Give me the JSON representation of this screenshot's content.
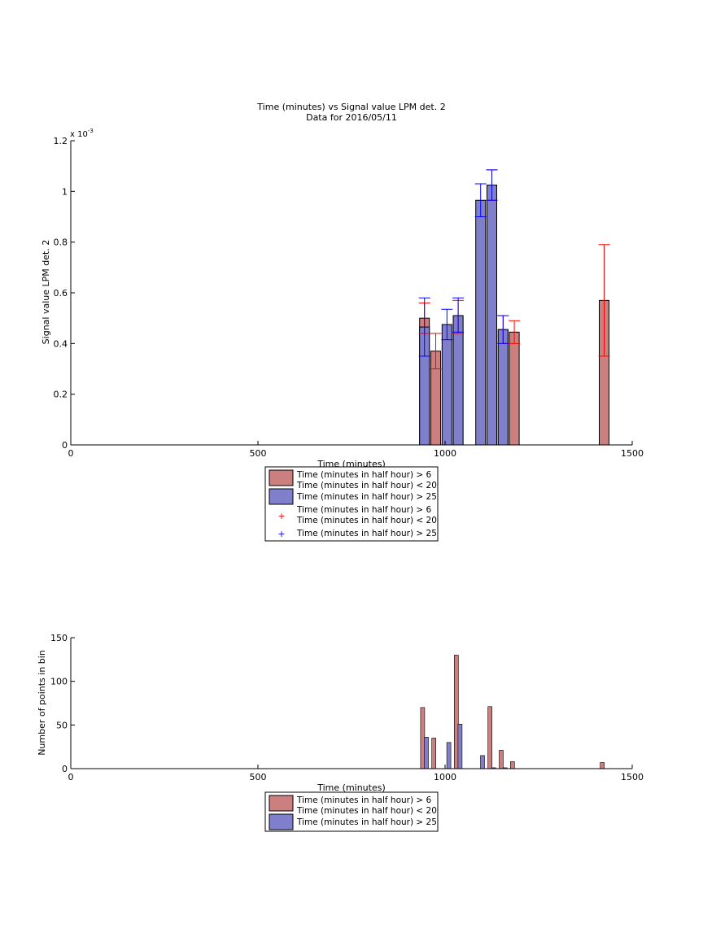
{
  "figure": {
    "title_line1": "Time (minutes) vs Signal value LPM det. 2",
    "title_line2": "Data for 2016/05/11"
  },
  "colors": {
    "red_fill": "#cc7f7f",
    "blue_fill": "#7f7fcc",
    "red_err": "#ff0000",
    "blue_err": "#0000ff",
    "axis": "#000000"
  },
  "legend_top": {
    "entries": [
      {
        "line1": "Time (minutes in half hour) > 6",
        "line2": "Time (minutes in half hour) < 20",
        "marker": "red-patch"
      },
      {
        "line1": "Time (minutes in half hour) > 25",
        "line2": "",
        "marker": "blue-patch"
      },
      {
        "line1": "Time (minutes in half hour) > 6",
        "line2": "Time (minutes in half hour) < 20",
        "marker": "red-plus"
      },
      {
        "line1": "Time (minutes in half hour) > 25",
        "line2": "",
        "marker": "blue-plus"
      }
    ]
  },
  "legend_bottom": {
    "entries": [
      {
        "line1": "Time (minutes in half hour) > 6",
        "line2": "Time (minutes in half hour) < 20",
        "marker": "red-patch"
      },
      {
        "line1": "Time (minutes in half hour) > 25",
        "line2": "",
        "marker": "blue-patch"
      }
    ]
  },
  "chart_data": [
    {
      "type": "bar",
      "title": "Time (minutes) vs Signal value LPM det. 2",
      "subtitle": "Data for 2016/05/11",
      "xlabel": "Time (minutes)",
      "ylabel": "Signal value LPM det. 2",
      "exponent_label": "x 10",
      "exponent_power": "-3",
      "xlim": [
        0,
        1500
      ],
      "ylim": [
        0,
        1.2
      ],
      "xticks": [
        0,
        500,
        1000,
        1500
      ],
      "xtick_labels": [
        "0",
        "500",
        "1000",
        "1500"
      ],
      "yticks": [
        0,
        0.2,
        0.4,
        0.6,
        0.8,
        1,
        1.2
      ],
      "ytick_labels": [
        "0",
        "0.2",
        "0.4",
        "0.6",
        "0.8",
        "1",
        "1.2"
      ],
      "grid": false,
      "legend_position": "below",
      "series": [
        {
          "name": "Time (minutes in half hour) > 6 Time (minutes in half hour) < 20",
          "color": "#cc7f7f",
          "err_color": "#ff0000",
          "points": [
            {
              "x": 945,
              "y": 0.5,
              "lo": 0.44,
              "hi": 0.56
            },
            {
              "x": 975,
              "y": 0.37,
              "lo": 0.3,
              "hi": 0.44
            },
            {
              "x": 1035,
              "y": 0.51,
              "lo": 0.44,
              "hi": 0.57
            },
            {
              "x": 1125,
              "y": 1.025,
              "lo": 0.965,
              "hi": 1.085
            },
            {
              "x": 1155,
              "y": 0.455,
              "lo": 0.4,
              "hi": 0.51
            },
            {
              "x": 1185,
              "y": 0.445,
              "lo": 0.4,
              "hi": 0.49
            },
            {
              "x": 1425,
              "y": 0.57,
              "lo": 0.35,
              "hi": 0.79
            }
          ]
        },
        {
          "name": "Time (minutes in half hour) > 25",
          "color": "#7f7fcc",
          "err_color": "#0000ff",
          "points": [
            {
              "x": 945,
              "y": 0.465,
              "lo": 0.35,
              "hi": 0.58
            },
            {
              "x": 1005,
              "y": 0.475,
              "lo": 0.415,
              "hi": 0.535
            },
            {
              "x": 1035,
              "y": 0.51,
              "lo": 0.445,
              "hi": 0.58
            },
            {
              "x": 1095,
              "y": 0.965,
              "lo": 0.9,
              "hi": 1.03
            },
            {
              "x": 1125,
              "y": 1.025,
              "lo": 0.965,
              "hi": 1.085
            },
            {
              "x": 1155,
              "y": 0.455,
              "lo": 0.4,
              "hi": 0.51
            }
          ]
        }
      ]
    },
    {
      "type": "bar",
      "xlabel": "Time (minutes)",
      "ylabel": "Number of points in bin",
      "xlim": [
        0,
        1500
      ],
      "ylim": [
        0,
        150
      ],
      "xticks": [
        0,
        500,
        1000,
        1500
      ],
      "xtick_labels": [
        "0",
        "500",
        "1000",
        "1500"
      ],
      "yticks": [
        0,
        50,
        100,
        150
      ],
      "ytick_labels": [
        "0",
        "50",
        "100",
        "150"
      ],
      "grid": false,
      "legend_position": "below",
      "series": [
        {
          "name": "Time (minutes in half hour) > 6 Time (minutes in half hour) < 20",
          "color": "#cc7f7f",
          "points": [
            {
              "x": 940,
              "y": 70
            },
            {
              "x": 970,
              "y": 35
            },
            {
              "x": 1030,
              "y": 130
            },
            {
              "x": 1120,
              "y": 71
            },
            {
              "x": 1150,
              "y": 21
            },
            {
              "x": 1180,
              "y": 8
            },
            {
              "x": 1420,
              "y": 7
            }
          ]
        },
        {
          "name": "Time (minutes in half hour) > 25",
          "color": "#7f7fcc",
          "points": [
            {
              "x": 950,
              "y": 36
            },
            {
              "x": 1010,
              "y": 30
            },
            {
              "x": 1040,
              "y": 51
            },
            {
              "x": 1100,
              "y": 15
            },
            {
              "x": 1130,
              "y": 1
            },
            {
              "x": 1160,
              "y": 1
            }
          ]
        }
      ]
    }
  ]
}
